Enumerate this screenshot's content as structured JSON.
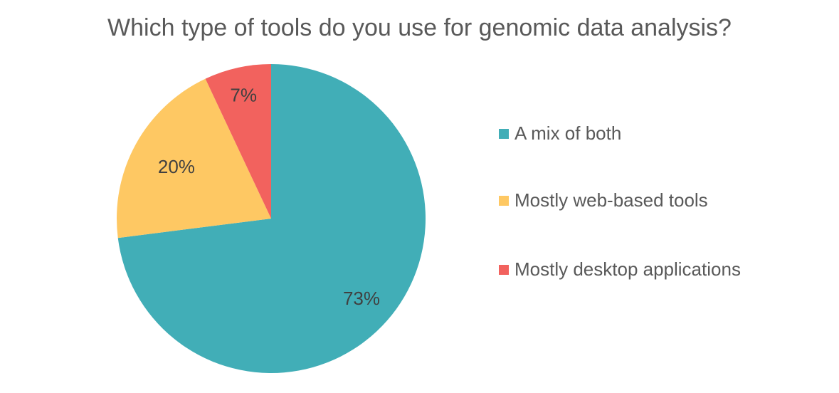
{
  "chart_data": {
    "type": "pie",
    "title": "Which type of tools do you use for genomic data analysis?",
    "slices": [
      {
        "label": "A mix of both",
        "value": 73,
        "data_label": "73%",
        "color": "#41AEB7"
      },
      {
        "label": "Mostly web-based tools",
        "value": 20,
        "data_label": "20%",
        "color": "#FEC863"
      },
      {
        "label": "Mostly desktop applications",
        "value": 7,
        "data_label": "7%",
        "color": "#F2625E"
      }
    ],
    "legend_position": "right",
    "start_angle": "top, clockwise"
  }
}
